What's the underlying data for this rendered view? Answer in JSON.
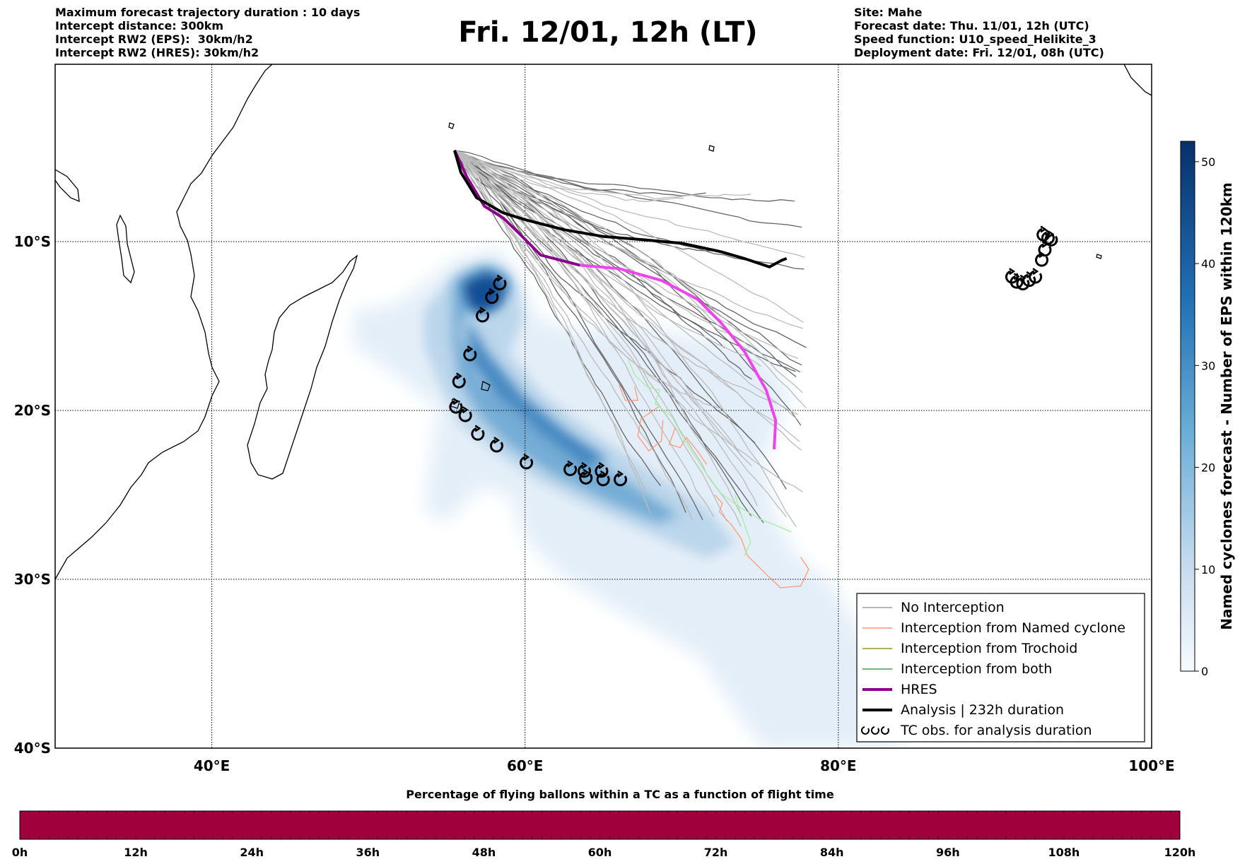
{
  "header_left": {
    "line1": "Maximum forecast trajectory duration : 10 days",
    "line2": "Intercept distance: 300km",
    "line3": "Intercept RW2 (EPS):  30km/h2",
    "line4": "Intercept RW2 (HRES): 30km/h2"
  },
  "title": "Fri. 12/01, 12h (LT)",
  "header_right": {
    "line1": "Site: Mahe",
    "line2": "Forecast date: Thu. 11/01, 12h (UTC)",
    "line3": "Speed function: U10_speed_Helikite_3",
    "line4": "Deployment date: Fri. 12/01, 08h (UTC)"
  },
  "map": {
    "extent_lon": [
      30,
      100
    ],
    "extent_lat": [
      -40,
      0.5
    ],
    "lat_ticks": [
      {
        "lat": -10,
        "label": "10°S"
      },
      {
        "lat": -20,
        "label": "20°S"
      },
      {
        "lat": -30,
        "label": "30°S"
      },
      {
        "lat": -40,
        "label": "40°S"
      }
    ],
    "lon_ticks": [
      {
        "lon": 40,
        "label": "40°E"
      },
      {
        "lon": 60,
        "label": "60°E"
      },
      {
        "lon": 80,
        "label": "80°E"
      },
      {
        "lon": 100,
        "label": "100°E"
      }
    ],
    "launch_site": {
      "lon": 55.5,
      "lat": -4.6
    },
    "hres_track": [
      [
        55.5,
        -4.6
      ],
      [
        56.3,
        -6.2
      ],
      [
        57.4,
        -7.9
      ],
      [
        58.6,
        -8.6
      ],
      [
        59.6,
        -9.5
      ],
      [
        61.0,
        -10.8
      ],
      [
        63.5,
        -11.4
      ],
      [
        66.0,
        -11.6
      ],
      [
        68.7,
        -12.3
      ],
      [
        71.0,
        -13.4
      ],
      [
        72.5,
        -14.8
      ],
      [
        74.0,
        -16.5
      ],
      [
        75.4,
        -18.8
      ],
      [
        76.0,
        -20.6
      ],
      [
        75.9,
        -22.3
      ]
    ],
    "analysis_track": [
      [
        55.5,
        -4.6
      ],
      [
        55.9,
        -5.9
      ],
      [
        56.9,
        -7.4
      ],
      [
        58.6,
        -8.3
      ],
      [
        60.0,
        -8.7
      ],
      [
        62.5,
        -9.3
      ],
      [
        65.0,
        -9.7
      ],
      [
        67.7,
        -9.9
      ],
      [
        70.0,
        -10.1
      ],
      [
        72.5,
        -10.6
      ],
      [
        74.0,
        -11.0
      ],
      [
        75.6,
        -11.5
      ],
      [
        76.4,
        -11.1
      ],
      [
        76.7,
        -11.0
      ]
    ],
    "tc_obs": [
      [
        58.4,
        -12.5
      ],
      [
        57.9,
        -13.3
      ],
      [
        57.3,
        -14.4
      ],
      [
        56.5,
        -16.7
      ],
      [
        55.8,
        -18.3
      ],
      [
        55.6,
        -19.8
      ],
      [
        56.2,
        -20.3
      ],
      [
        57.0,
        -21.4
      ],
      [
        58.2,
        -22.1
      ],
      [
        60.1,
        -23.1
      ],
      [
        62.9,
        -23.5
      ],
      [
        63.8,
        -23.6
      ],
      [
        64.9,
        -23.6
      ],
      [
        63.9,
        -24.0
      ],
      [
        65.0,
        -24.1
      ],
      [
        66.1,
        -24.1
      ],
      [
        93.1,
        -9.6
      ],
      [
        93.4,
        -9.8
      ],
      [
        93.6,
        -9.9
      ],
      [
        93.2,
        -10.5
      ],
      [
        93.0,
        -11.1
      ],
      [
        92.6,
        -12.1
      ],
      [
        92.2,
        -12.3
      ],
      [
        91.8,
        -12.5
      ],
      [
        91.4,
        -12.4
      ],
      [
        91.1,
        -12.1
      ]
    ],
    "colors": {
      "land_outline": "#000000",
      "hres": "#8b008b",
      "hres_late": "#ee44ee",
      "analysis": "#000000",
      "no_interception": "#8c8c8c",
      "interception_named_cyclone": "#ff7f50",
      "interception_trochoid": "#808000",
      "interception_both": "#228b22"
    }
  },
  "legend": {
    "items": [
      {
        "label": "No Interception",
        "color": "#8c8c8c",
        "width": 1.2,
        "icon": "line"
      },
      {
        "label": "Interception from Named cyclone",
        "color": "#ff7f50",
        "width": 1.2,
        "icon": "line"
      },
      {
        "label": "Interception from Trochoid",
        "color": "#808000",
        "width": 1.2,
        "icon": "line"
      },
      {
        "label": "Interception from both",
        "color": "#228b22",
        "width": 1.2,
        "icon": "line"
      },
      {
        "label": "HRES",
        "color": "#8b008b",
        "width": 4,
        "icon": "line"
      },
      {
        "label": "Analysis | 232h duration",
        "color": "#000000",
        "width": 4,
        "icon": "line"
      },
      {
        "label": "TC obs. for analysis duration",
        "color": "#000000",
        "width": 2,
        "icon": "cyclone-symbol"
      }
    ]
  },
  "colorbar": {
    "label": "Named cyclones forecast - Number of EPS within 120km",
    "range": [
      0,
      52
    ],
    "ticks": [
      0,
      10,
      20,
      30,
      40,
      50
    ],
    "colormap": "Blues"
  },
  "bottom_bar": {
    "title": "Percentage of flying ballons within a TC as a function of flight time",
    "color": "#a0003c",
    "ticks": [
      "0h",
      "12h",
      "24h",
      "36h",
      "48h",
      "60h",
      "72h",
      "84h",
      "96h",
      "108h",
      "120h"
    ]
  }
}
